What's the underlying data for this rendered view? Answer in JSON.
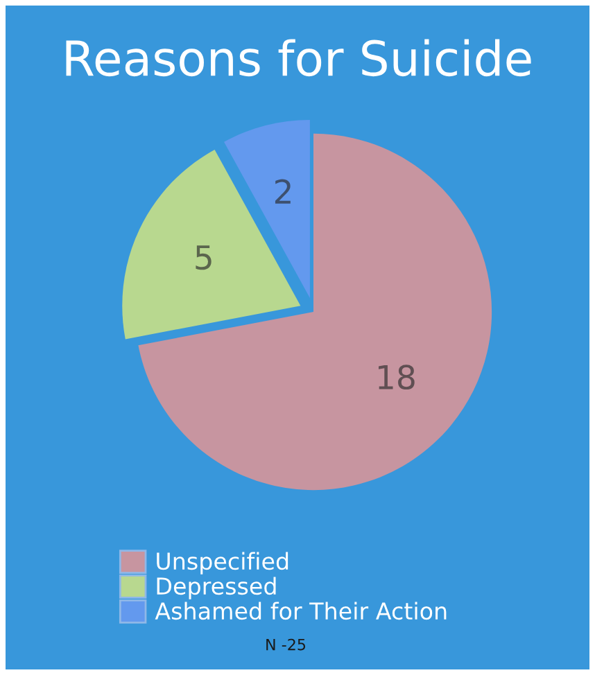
{
  "chart_data": {
    "type": "pie",
    "title": "Reasons for Suicide",
    "categories": [
      "Unspecified",
      "Depressed",
      "Ashamed for Their Action"
    ],
    "values": [
      18,
      5,
      2
    ],
    "colors": [
      "#c795a0",
      "#b8d88f",
      "#6399ee"
    ],
    "data_labels": true,
    "legend": "bottom left",
    "annotations": [
      "N -25"
    ]
  }
}
